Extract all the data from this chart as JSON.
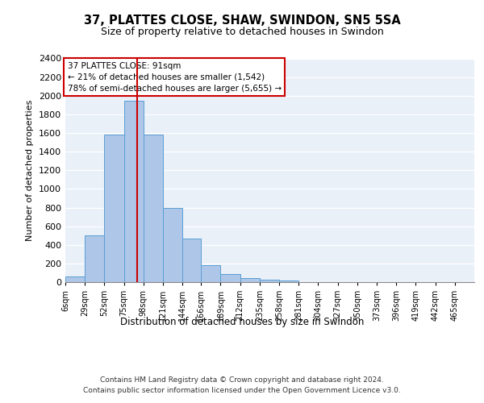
{
  "title1": "37, PLATTES CLOSE, SHAW, SWINDON, SN5 5SA",
  "title2": "Size of property relative to detached houses in Swindon",
  "xlabel": "Distribution of detached houses by size in Swindon",
  "ylabel": "Number of detached properties",
  "bar_values": [
    60,
    500,
    1580,
    1950,
    1580,
    800,
    465,
    185,
    90,
    40,
    30,
    20,
    0,
    0,
    0,
    0,
    0,
    0,
    0,
    0,
    0
  ],
  "bar_labels": [
    "6sqm",
    "29sqm",
    "52sqm",
    "75sqm",
    "98sqm",
    "121sqm",
    "144sqm",
    "166sqm",
    "189sqm",
    "212sqm",
    "235sqm",
    "258sqm",
    "281sqm",
    "304sqm",
    "327sqm",
    "350sqm",
    "373sqm",
    "396sqm",
    "419sqm",
    "442sqm",
    "465sqm"
  ],
  "bar_color": "#aec6e8",
  "bar_edge_color": "#5a9fd4",
  "ylim": [
    0,
    2400
  ],
  "yticks": [
    0,
    200,
    400,
    600,
    800,
    1000,
    1200,
    1400,
    1600,
    1800,
    2000,
    2200,
    2400
  ],
  "vline_x": 91,
  "annotation_text": "37 PLATTES CLOSE: 91sqm\n← 21% of detached houses are smaller (1,542)\n78% of semi-detached houses are larger (5,655) →",
  "annotation_box_color": "#ffffff",
  "annotation_border_color": "#cc0000",
  "vline_color": "#cc0000",
  "footer1": "Contains HM Land Registry data © Crown copyright and database right 2024.",
  "footer2": "Contains public sector information licensed under the Open Government Licence v3.0.",
  "bg_color": "#eaf0f8",
  "grid_color": "#ffffff",
  "bin_edges": [
    6,
    29,
    52,
    75,
    98,
    121,
    144,
    166,
    189,
    212,
    235,
    258,
    281,
    304,
    327,
    350,
    373,
    396,
    419,
    442,
    465,
    488
  ]
}
